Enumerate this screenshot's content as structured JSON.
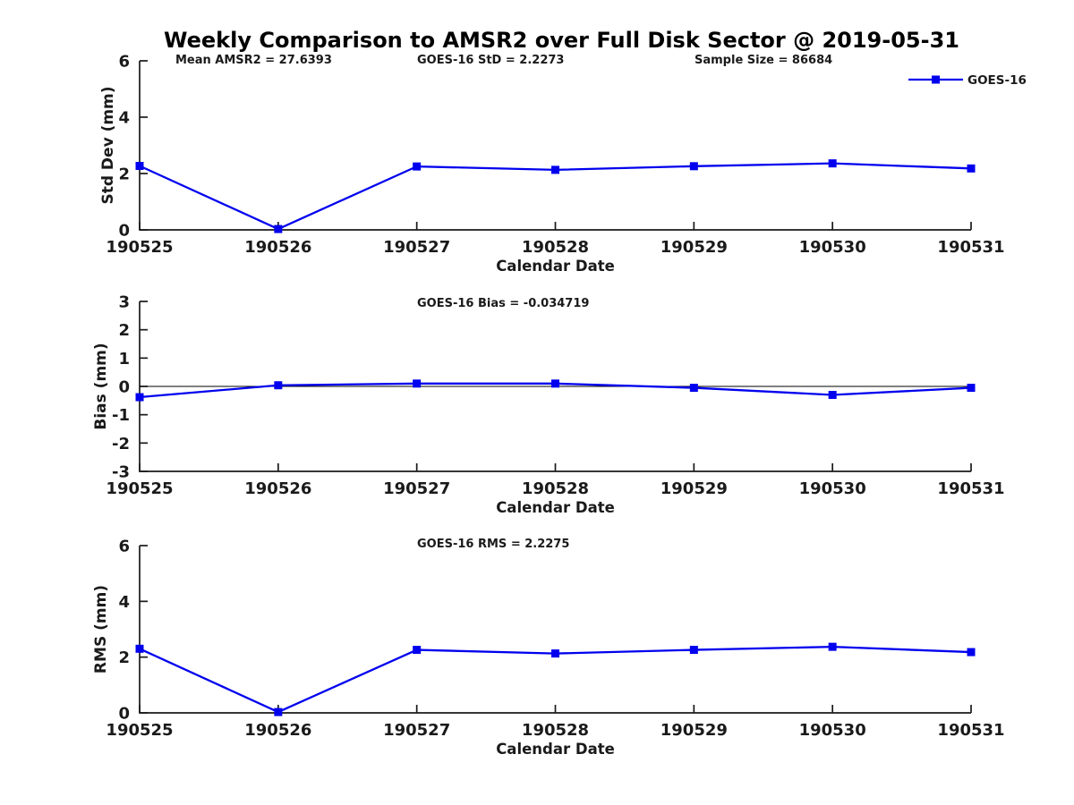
{
  "title": "Weekly Comparison to AMSR2 over Full Disk Sector @ 2019-05-31",
  "colors": {
    "background": "#ffffff",
    "line": "#0000EE",
    "axis": "#1a1a1a",
    "text": "#1a1a1a",
    "zero_line": "#000000"
  },
  "legend": {
    "label": "GOES-16"
  },
  "chart_data": [
    {
      "id": "std-dev",
      "type": "line",
      "xlabel": "Calendar Date",
      "ylabel": "Std Dev (mm)",
      "categories": [
        "190525",
        "190526",
        "190527",
        "190528",
        "190529",
        "190530",
        "190531"
      ],
      "series": [
        {
          "name": "GOES-16",
          "values": [
            2.27,
            0.03,
            2.25,
            2.13,
            2.26,
            2.36,
            2.18
          ]
        }
      ],
      "ylim": [
        0,
        6
      ],
      "yticks": [
        0,
        2,
        4,
        6
      ],
      "grid": false,
      "zero_line": false,
      "legend_visible": true,
      "legend_position": "top-right",
      "annotations": [
        {
          "text": "Mean AMSR2 = 27.6393",
          "x": 196
        },
        {
          "text": "GOES-16 StD = 2.2273",
          "x": 466
        },
        {
          "text": "Sample Size = 86684",
          "x": 776
        }
      ]
    },
    {
      "id": "bias",
      "type": "line",
      "xlabel": "Calendar Date",
      "ylabel": "Bias (mm)",
      "categories": [
        "190525",
        "190526",
        "190527",
        "190528",
        "190529",
        "190530",
        "190531"
      ],
      "series": [
        {
          "name": "GOES-16",
          "values": [
            -0.38,
            0.04,
            0.1,
            0.1,
            -0.05,
            -0.3,
            -0.05
          ]
        }
      ],
      "ylim": [
        -3,
        3
      ],
      "yticks": [
        -3,
        -2,
        -1,
        0,
        1,
        2,
        3
      ],
      "grid": false,
      "zero_line": true,
      "legend_visible": false,
      "annotations": [
        {
          "text": "GOES-16 Bias  = -0.034719",
          "x": 466
        }
      ]
    },
    {
      "id": "rms",
      "type": "line",
      "xlabel": "Calendar Date",
      "ylabel": "RMS (mm)",
      "categories": [
        "190525",
        "190526",
        "190527",
        "190528",
        "190529",
        "190530",
        "190531"
      ],
      "series": [
        {
          "name": "GOES-16",
          "values": [
            2.3,
            0.03,
            2.26,
            2.13,
            2.26,
            2.37,
            2.18
          ]
        }
      ],
      "ylim": [
        0,
        6
      ],
      "yticks": [
        0,
        2,
        4,
        6
      ],
      "grid": false,
      "zero_line": false,
      "legend_visible": false,
      "annotations": [
        {
          "text": "GOES-16 RMS = 2.2275",
          "x": 466
        }
      ]
    }
  ]
}
